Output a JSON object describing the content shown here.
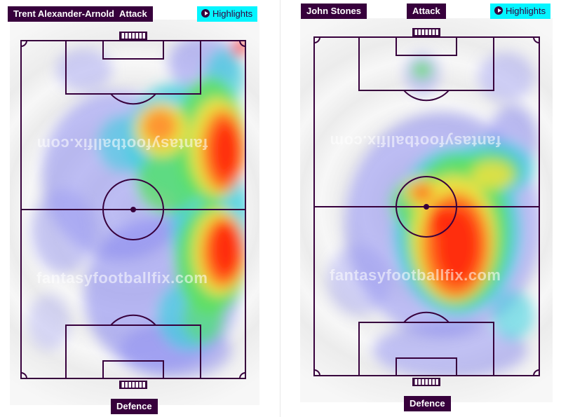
{
  "panels": [
    {
      "player": "Trent Alexander-Arnold",
      "attack_label": "Attack",
      "highlights_label": "Highlights",
      "defence_label": "Defence",
      "watermark_top": "fantasyfootballfix.com",
      "watermark_bottom": "fantasyfootballfix.com"
    },
    {
      "player": "John Stones",
      "attack_label": "Attack",
      "highlights_label": "Highlights",
      "defence_label": "Defence",
      "watermark_top": "fantasyfootballfix.com",
      "watermark_bottom": "fantasyfootballfix.com"
    }
  ],
  "colors": {
    "brand_purple": "#37003c",
    "highlight_cyan": "#04f5ff",
    "pitch_line": "#37003c"
  }
}
